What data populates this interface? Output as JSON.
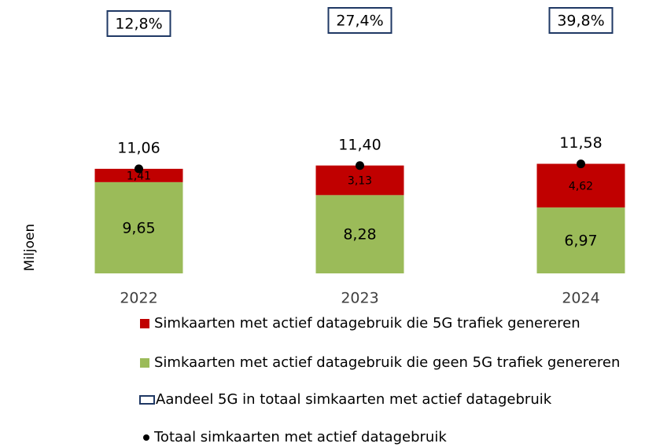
{
  "chart_data": {
    "type": "bar",
    "stacked": true,
    "categories": [
      "2022",
      "2023",
      "2024"
    ],
    "ylabel": "Miljoen",
    "ylim": [
      0,
      28
    ],
    "series": [
      {
        "name": "Simkaarten met actief datagebruik die 5G trafiek genereren",
        "type": "bar",
        "color": "#c00000",
        "values": [
          1.41,
          3.13,
          4.62
        ],
        "value_labels": [
          "1,41",
          "3,13",
          "4,62"
        ]
      },
      {
        "name": "Simkaarten met actief datagebruik die geen 5G trafiek genereren",
        "type": "bar",
        "color": "#9bbb59",
        "values": [
          9.65,
          8.28,
          6.97
        ],
        "value_labels": [
          "9,65",
          "8,28",
          "6,97"
        ]
      },
      {
        "name": "Aandeel 5G in totaal simkaarten met actief datagebruik",
        "type": "box",
        "color": "#1f3864",
        "values": [
          12.8,
          27.4,
          39.8
        ],
        "value_labels": [
          "12,8%",
          "27,4%",
          "39,8%"
        ]
      },
      {
        "name": "Totaal simkaarten met actief datagebruik",
        "type": "point",
        "color": "#000000",
        "values": [
          11.06,
          11.4,
          11.58
        ],
        "value_labels": [
          "11,06",
          "11,40",
          "11,58"
        ]
      }
    ]
  }
}
